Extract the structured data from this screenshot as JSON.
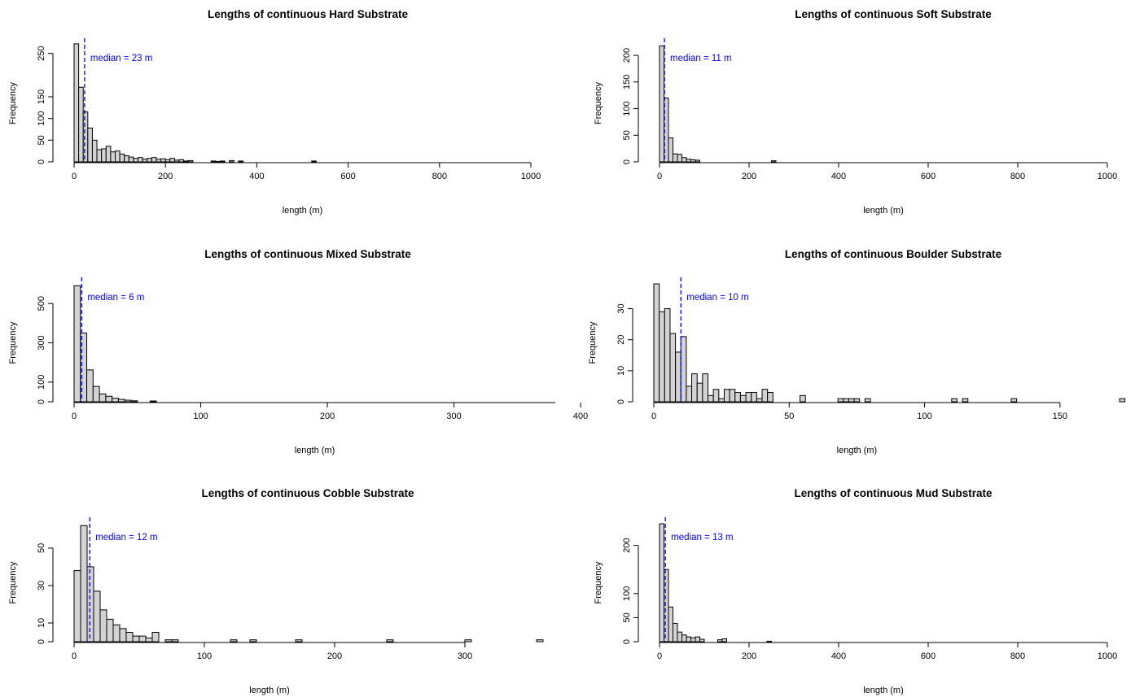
{
  "chart_data": [
    {
      "type": "bar",
      "title": "Lengths of continuous Hard Substrate",
      "xlabel": "length (m)",
      "ylabel": "Frequency",
      "xlim": [
        0,
        1000
      ],
      "ylim": [
        0,
        270
      ],
      "x_ticks": [
        0,
        200,
        400,
        600,
        800,
        1000
      ],
      "y_ticks": [
        0,
        50,
        100,
        150,
        250
      ],
      "bin_width": 10,
      "median_value": 23,
      "median_label": "median = 23 m",
      "median_color": "#0000ff",
      "values": [
        272,
        172,
        115,
        78,
        50,
        28,
        30,
        36,
        23,
        25,
        18,
        14,
        11,
        8,
        10,
        6,
        8,
        10,
        6,
        7,
        5,
        8,
        4,
        5,
        2,
        3,
        0,
        0,
        0,
        0,
        2,
        1,
        2,
        0,
        3,
        0,
        2,
        0,
        0,
        0,
        0,
        0,
        0,
        0,
        0,
        0,
        0,
        0,
        0,
        0,
        0,
        0,
        2
      ]
    },
    {
      "type": "bar",
      "title": "Lengths of continuous Soft Substrate",
      "xlabel": "length (m)",
      "ylabel": "Frequency",
      "xlim": [
        0,
        1000
      ],
      "ylim": [
        0,
        220
      ],
      "x_ticks": [
        0,
        200,
        400,
        600,
        800,
        1000
      ],
      "y_ticks": [
        0,
        50,
        100,
        150,
        200
      ],
      "bin_width": 10,
      "median_value": 11,
      "median_label": "median = 11 m",
      "median_color": "#0000ff",
      "values": [
        218,
        120,
        45,
        15,
        14,
        8,
        5,
        4,
        3,
        0,
        0,
        0,
        0,
        0,
        0,
        0,
        0,
        0,
        0,
        0,
        0,
        0,
        0,
        0,
        0,
        2
      ]
    },
    {
      "type": "bar",
      "title": "Lengths of continuous Mixed Substrate",
      "xlabel": "length (m)",
      "ylabel": "Frequency",
      "xlim": [
        0,
        380
      ],
      "ylim": [
        0,
        600
      ],
      "x_ticks": [
        0,
        100,
        200,
        300,
        400
      ],
      "y_ticks": [
        0,
        100,
        300,
        500
      ],
      "bin_width": 5,
      "median_value": 6,
      "median_label": "median = 6 m",
      "median_color": "#0000ff",
      "values": [
        590,
        350,
        162,
        78,
        40,
        28,
        18,
        12,
        8,
        5,
        0,
        0,
        4
      ]
    },
    {
      "type": "bar",
      "title": "Lengths of continuous Boulder Substrate",
      "xlabel": "length (m)",
      "ylabel": "Frequency",
      "xlim": [
        0,
        175
      ],
      "ylim": [
        0,
        38
      ],
      "x_ticks": [
        0,
        50,
        100,
        150
      ],
      "y_ticks": [
        0,
        10,
        20,
        30
      ],
      "bin_width": 2,
      "median_value": 10,
      "median_label": "median = 10 m",
      "median_color": "#0000ff",
      "values": [
        38,
        29,
        30,
        22,
        16,
        21,
        5,
        9,
        6,
        9,
        2,
        4,
        1,
        4,
        4,
        3,
        2,
        3,
        3,
        1,
        4,
        3,
        0,
        0,
        0,
        0,
        0,
        2,
        0,
        0,
        0,
        0,
        0,
        0,
        1,
        1,
        1,
        1,
        0,
        1,
        0,
        0,
        0,
        0,
        0,
        0,
        0,
        0,
        0,
        0,
        0,
        0,
        0,
        0,
        0,
        1,
        0,
        1,
        0,
        0,
        0,
        0,
        0,
        0,
        0,
        0,
        1,
        0,
        0,
        0,
        0,
        0,
        0,
        0,
        0,
        0,
        0,
        0,
        0,
        0,
        0,
        0,
        0,
        0,
        0,
        0,
        1
      ]
    },
    {
      "type": "bar",
      "title": "Lengths of continuous Cobble Substrate",
      "xlabel": "length (m)",
      "ylabel": "Frequency",
      "xlim": [
        0,
        360
      ],
      "ylim": [
        0,
        63
      ],
      "x_ticks": [
        0,
        100,
        200,
        300
      ],
      "y_ticks": [
        0,
        10,
        30,
        50
      ],
      "bin_width": 5,
      "median_value": 12,
      "median_label": "median = 12 m",
      "median_color": "#0000ff",
      "values": [
        38,
        62,
        40,
        27,
        17,
        12,
        9,
        7,
        5,
        3,
        3,
        2,
        5,
        0,
        1,
        1,
        0,
        0,
        0,
        0,
        0,
        0,
        0,
        0,
        1,
        0,
        0,
        1,
        0,
        0,
        0,
        0,
        0,
        0,
        1,
        0,
        0,
        0,
        0,
        0,
        0,
        0,
        0,
        0,
        0,
        0,
        0,
        0,
        1,
        0,
        0,
        0,
        0,
        0,
        0,
        0,
        0,
        0,
        0,
        0,
        1,
        0,
        0,
        0,
        0,
        0,
        0,
        0,
        0,
        0,
        0,
        1
      ]
    },
    {
      "type": "bar",
      "title": "Lengths of continuous Mud Substrate",
      "xlabel": "length (m)",
      "ylabel": "Frequency",
      "xlim": [
        0,
        1000
      ],
      "ylim": [
        0,
        245
      ],
      "x_ticks": [
        0,
        200,
        400,
        600,
        800,
        1000
      ],
      "y_ticks": [
        0,
        50,
        100,
        200
      ],
      "bin_width": 10,
      "median_value": 13,
      "median_label": "median = 13 m",
      "median_color": "#0000ff",
      "values": [
        245,
        150,
        72,
        38,
        20,
        14,
        10,
        8,
        10,
        5,
        0,
        0,
        0,
        4,
        6,
        0,
        0,
        0,
        0,
        0,
        0,
        0,
        0,
        0,
        1
      ]
    }
  ]
}
